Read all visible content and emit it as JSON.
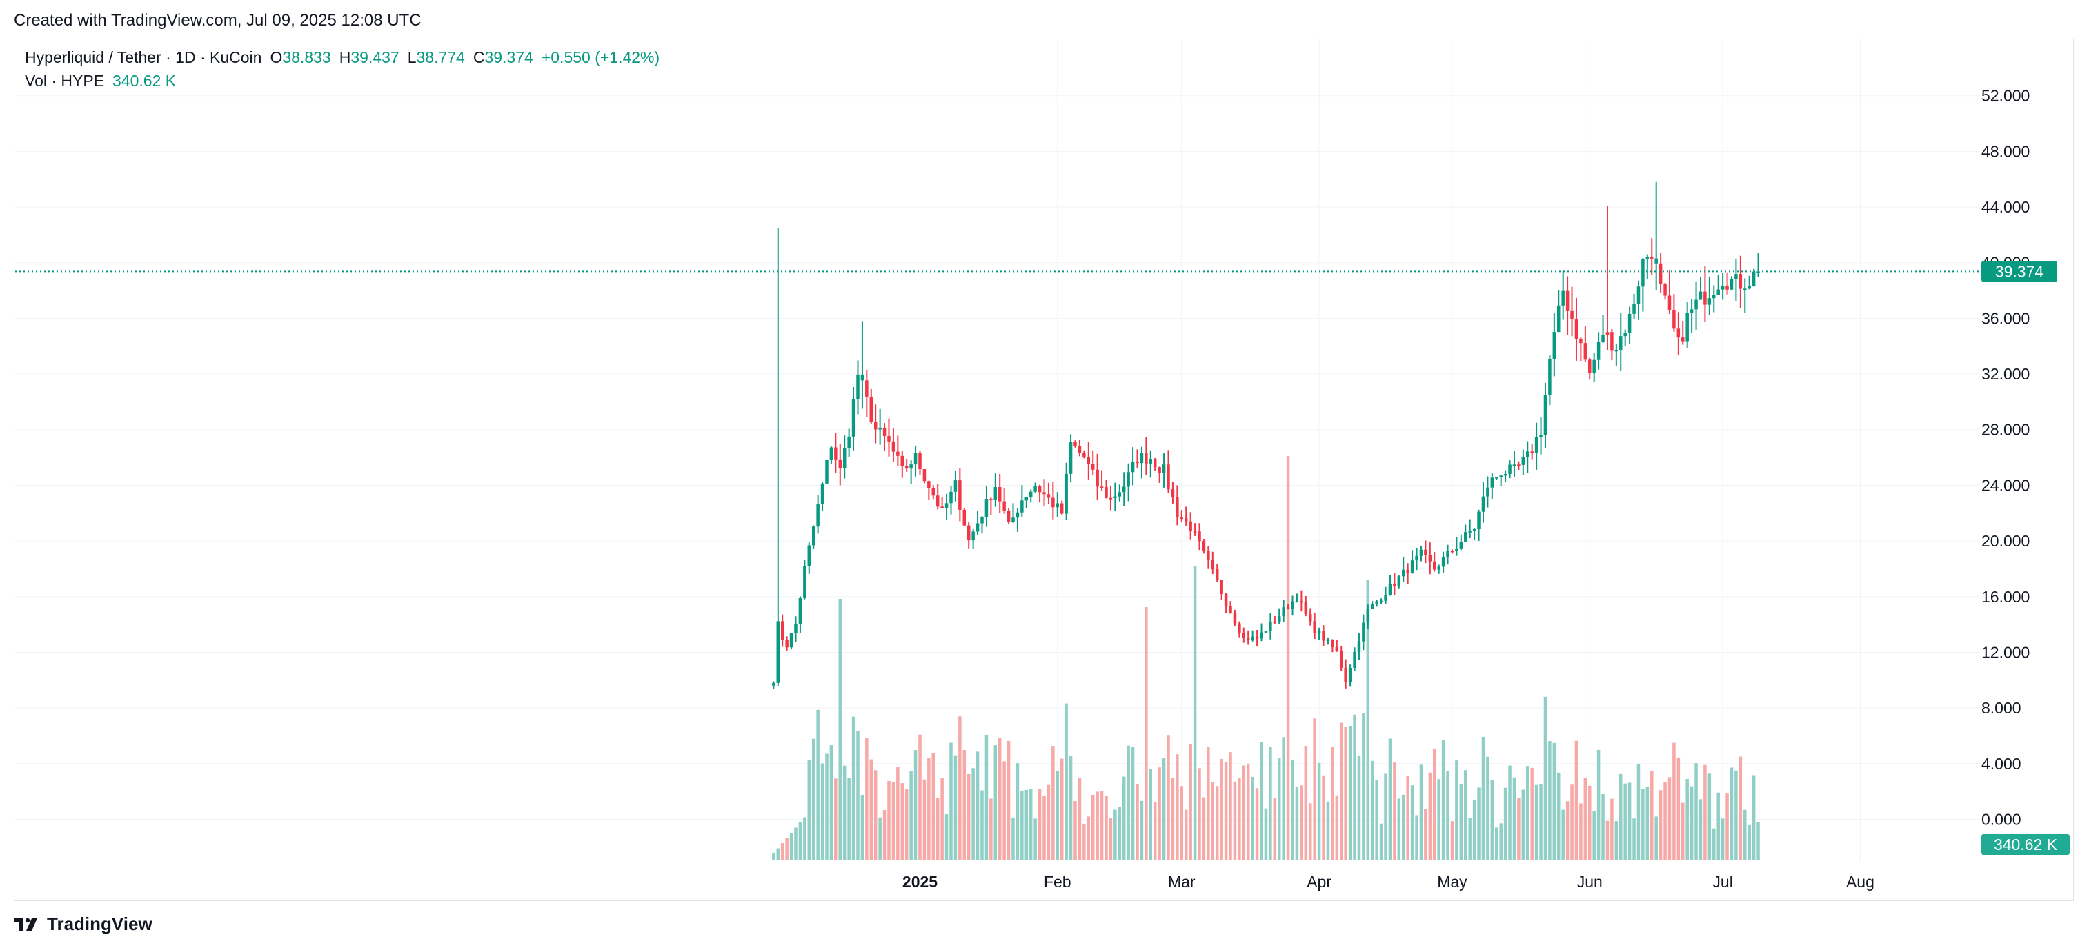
{
  "header": {
    "created_text": "Created with TradingView.com, Jul 09, 2025 12:08 UTC"
  },
  "legend": {
    "symbol": "Hyperliquid / Tether · 1D · KuCoin",
    "open_label": "O",
    "open": "38.833",
    "high_label": "H",
    "high": "39.437",
    "low_label": "L",
    "low": "38.774",
    "close_label": "C",
    "close": "39.374",
    "change": "+0.550 (+1.42%)",
    "vol_label": "Vol · HYPE",
    "vol_value": "340.62 K"
  },
  "footer": {
    "brand": "TradingView",
    "logo_icon": "tradingview-logo-icon"
  },
  "colors": {
    "up": "#089981",
    "down": "#f23645",
    "up_vol": "#8fcfc5",
    "down_vol": "#f7a9a7",
    "grid": "#f0f3fa",
    "axis_text": "#131722"
  },
  "chart_data": {
    "type": "candlestick",
    "y_ticks": [
      "52.000",
      "48.000",
      "44.000",
      "40.000",
      "36.000",
      "32.000",
      "28.000",
      "24.000",
      "20.000",
      "16.000",
      "12.000",
      "8.000",
      "4.000",
      "0.000"
    ],
    "y_tick_values": [
      52,
      48,
      44,
      40,
      36,
      32,
      28,
      24,
      20,
      16,
      12,
      8,
      4,
      0
    ],
    "ylim": [
      -3.1,
      56.1
    ],
    "x_labels": [
      {
        "label": "2025",
        "date": "2025-01-01",
        "bold": true
      },
      {
        "label": "Feb",
        "date": "2025-02-01",
        "bold": false
      },
      {
        "label": "Mar",
        "date": "2025-03-01",
        "bold": false
      },
      {
        "label": "Apr",
        "date": "2025-04-01",
        "bold": false
      },
      {
        "label": "May",
        "date": "2025-05-01",
        "bold": false
      },
      {
        "label": "Jun",
        "date": "2025-06-01",
        "bold": false
      },
      {
        "label": "Jul",
        "date": "2025-07-01",
        "bold": false
      },
      {
        "label": "Aug",
        "date": "2025-08-01",
        "bold": false
      }
    ],
    "xlim": [
      "2024-06-11",
      "2025-08-28"
    ],
    "last_price": 39.374,
    "last_price_label": "39.374",
    "last_volume_label": "340.62 K",
    "price_anchors": [
      [
        "2024-11-29",
        10
      ],
      [
        "2024-11-30",
        14
      ],
      [
        "2024-12-01",
        13
      ],
      [
        "2024-12-02",
        12.5
      ],
      [
        "2024-12-04",
        14
      ],
      [
        "2024-12-06",
        18
      ],
      [
        "2024-12-08",
        21
      ],
      [
        "2024-12-10",
        24
      ],
      [
        "2024-12-12",
        27
      ],
      [
        "2024-12-14",
        25
      ],
      [
        "2024-12-16",
        28
      ],
      [
        "2024-12-18",
        32
      ],
      [
        "2024-12-20",
        30
      ],
      [
        "2024-12-22",
        28
      ],
      [
        "2024-12-25",
        27
      ],
      [
        "2024-12-28",
        25
      ],
      [
        "2024-12-31",
        26
      ],
      [
        "2025-01-03",
        24
      ],
      [
        "2025-01-06",
        22
      ],
      [
        "2025-01-09",
        24
      ],
      [
        "2025-01-12",
        20
      ],
      [
        "2025-01-15",
        22
      ],
      [
        "2025-01-18",
        24
      ],
      [
        "2025-01-21",
        21
      ],
      [
        "2025-01-24",
        23
      ],
      [
        "2025-01-27",
        24
      ],
      [
        "2025-01-30",
        23
      ],
      [
        "2025-02-02",
        22
      ],
      [
        "2025-02-04",
        27
      ],
      [
        "2025-02-07",
        26
      ],
      [
        "2025-02-10",
        24
      ],
      [
        "2025-02-13",
        23
      ],
      [
        "2025-02-16",
        24
      ],
      [
        "2025-02-19",
        26
      ],
      [
        "2025-02-22",
        26
      ],
      [
        "2025-02-25",
        25
      ],
      [
        "2025-02-28",
        22
      ],
      [
        "2025-03-03",
        21
      ],
      [
        "2025-03-06",
        19
      ],
      [
        "2025-03-09",
        17
      ],
      [
        "2025-03-12",
        15
      ],
      [
        "2025-03-15",
        13
      ],
      [
        "2025-03-18",
        13
      ],
      [
        "2025-03-21",
        14
      ],
      [
        "2025-03-24",
        15
      ],
      [
        "2025-03-27",
        16
      ],
      [
        "2025-03-30",
        14
      ],
      [
        "2025-04-02",
        13
      ],
      [
        "2025-04-05",
        12
      ],
      [
        "2025-04-07",
        10
      ],
      [
        "2025-04-09",
        12
      ],
      [
        "2025-04-12",
        15
      ],
      [
        "2025-04-15",
        16
      ],
      [
        "2025-04-18",
        17
      ],
      [
        "2025-04-21",
        18
      ],
      [
        "2025-04-24",
        19
      ],
      [
        "2025-04-27",
        18
      ],
      [
        "2025-04-30",
        19
      ],
      [
        "2025-05-03",
        20
      ],
      [
        "2025-05-06",
        21
      ],
      [
        "2025-05-09",
        24
      ],
      [
        "2025-05-12",
        25
      ],
      [
        "2025-05-15",
        25
      ],
      [
        "2025-05-18",
        26
      ],
      [
        "2025-05-21",
        28
      ],
      [
        "2025-05-23",
        33
      ],
      [
        "2025-05-26",
        38
      ],
      [
        "2025-05-29",
        35
      ],
      [
        "2025-06-01",
        32
      ],
      [
        "2025-06-04",
        35
      ],
      [
        "2025-06-07",
        34
      ],
      [
        "2025-06-10",
        36
      ],
      [
        "2025-06-13",
        40
      ],
      [
        "2025-06-15",
        41
      ],
      [
        "2025-06-17",
        38
      ],
      [
        "2025-06-19",
        36
      ],
      [
        "2025-06-21",
        34
      ],
      [
        "2025-06-23",
        36
      ],
      [
        "2025-06-25",
        37
      ],
      [
        "2025-06-28",
        38
      ],
      [
        "2025-07-01",
        39
      ],
      [
        "2025-07-04",
        38.5
      ],
      [
        "2025-07-07",
        38.8
      ],
      [
        "2025-07-09",
        39.374
      ]
    ],
    "spikes": [
      {
        "date": "2024-11-30",
        "high": 42.5,
        "low": 11.0,
        "color": "up"
      },
      {
        "date": "2025-06-16",
        "high": 45.8,
        "low": 38.0,
        "color": "up"
      },
      {
        "date": "2025-06-05",
        "high": 44.1,
        "low": 36.0,
        "color": "down"
      },
      {
        "date": "2025-04-07",
        "high": 11.5,
        "low": 9.4,
        "color": "down"
      },
      {
        "date": "2024-12-19",
        "high": 35.8,
        "low": 29.5,
        "color": "up"
      }
    ],
    "volume_spikes": [
      {
        "date": "2025-03-25",
        "value": 19.5,
        "color": "down"
      },
      {
        "date": "2025-04-12",
        "value": 13.5,
        "color": "up"
      },
      {
        "date": "2025-03-04",
        "value": 14.2,
        "color": "up"
      },
      {
        "date": "2024-12-14",
        "value": 12.6,
        "color": "up"
      },
      {
        "date": "2025-02-21",
        "value": 12.2,
        "color": "down"
      }
    ]
  }
}
